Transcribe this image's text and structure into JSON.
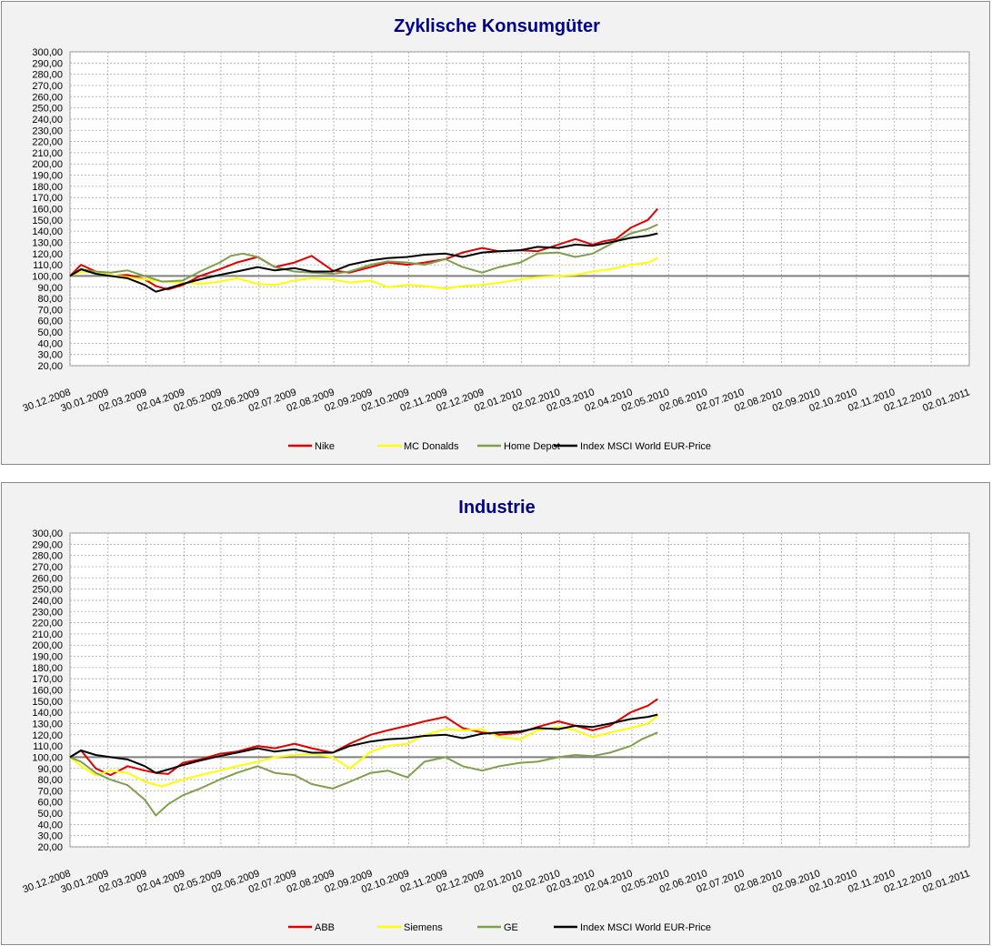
{
  "chart_data": [
    {
      "type": "line",
      "title": "Zyklische Konsumgüter",
      "ylim": [
        20,
        300
      ],
      "ytick_step": 10,
      "xlim": [
        "2008-12-30",
        "2011-01-02"
      ],
      "x_tick_labels": [
        "30.12.2008",
        "30.01.2009",
        "02.03.2009",
        "02.04.2009",
        "02.05.2009",
        "02.06.2009",
        "02.07.2009",
        "02.08.2009",
        "02.09.2009",
        "02.10.2009",
        "02.11.2009",
        "02.12.2009",
        "02.01.2010",
        "02.02.2010",
        "02.03.2010",
        "02.04.2010",
        "02.05.2010",
        "02.06.2010",
        "02.07.2010",
        "02.08.2010",
        "02.09.2010",
        "02.10.2010",
        "02.11.2010",
        "02.12.2010",
        "02.01.2011"
      ],
      "baseline": 100,
      "grid": true,
      "legend_position": "bottom",
      "series": [
        {
          "name": "Nike",
          "color": "#e00000",
          "x": [
            "2008-12-30",
            "2009-01-08",
            "2009-01-20",
            "2009-02-01",
            "2009-02-15",
            "2009-03-01",
            "2009-03-10",
            "2009-03-20",
            "2009-04-01",
            "2009-04-15",
            "2009-05-01",
            "2009-05-15",
            "2009-06-01",
            "2009-06-15",
            "2009-07-01",
            "2009-07-15",
            "2009-08-01",
            "2009-08-15",
            "2009-09-01",
            "2009-09-15",
            "2009-10-01",
            "2009-10-15",
            "2009-11-01",
            "2009-11-15",
            "2009-12-01",
            "2009-12-15",
            "2010-01-01",
            "2010-01-15",
            "2010-02-01",
            "2010-02-15",
            "2010-03-01",
            "2010-03-10",
            "2010-03-20",
            "2010-04-01",
            "2010-04-15",
            "2010-04-23"
          ],
          "y": [
            100,
            110,
            104,
            100,
            101,
            97,
            91,
            88,
            92,
            100,
            106,
            112,
            117,
            108,
            112,
            118,
            105,
            103,
            108,
            112,
            110,
            112,
            115,
            121,
            125,
            122,
            123,
            122,
            128,
            133,
            128,
            131,
            133,
            143,
            150,
            160
          ]
        },
        {
          "name": "MC Donalds",
          "color": "#ffff00",
          "x": [
            "2008-12-30",
            "2009-01-08",
            "2009-01-20",
            "2009-02-01",
            "2009-02-15",
            "2009-03-01",
            "2009-03-15",
            "2009-04-01",
            "2009-04-15",
            "2009-05-01",
            "2009-05-15",
            "2009-06-01",
            "2009-06-15",
            "2009-07-01",
            "2009-07-15",
            "2009-08-01",
            "2009-08-15",
            "2009-09-01",
            "2009-09-15",
            "2009-10-01",
            "2009-10-15",
            "2009-11-01",
            "2009-11-15",
            "2009-12-01",
            "2009-12-15",
            "2010-01-01",
            "2010-01-15",
            "2010-02-01",
            "2010-02-15",
            "2010-03-01",
            "2010-03-15",
            "2010-04-01",
            "2010-04-15",
            "2010-04-23"
          ],
          "y": [
            100,
            104,
            103,
            101,
            99,
            97,
            95,
            94,
            93,
            95,
            98,
            93,
            92,
            96,
            98,
            97,
            94,
            96,
            90,
            92,
            91,
            89,
            91,
            92,
            94,
            97,
            99,
            100,
            101,
            104,
            106,
            110,
            112,
            116
          ]
        },
        {
          "name": "Home Depot",
          "color": "#7f9f4f",
          "x": [
            "2008-12-30",
            "2009-01-08",
            "2009-01-20",
            "2009-02-01",
            "2009-02-15",
            "2009-03-01",
            "2009-03-15",
            "2009-04-01",
            "2009-04-15",
            "2009-05-01",
            "2009-05-10",
            "2009-05-20",
            "2009-06-01",
            "2009-06-15",
            "2009-07-01",
            "2009-07-15",
            "2009-08-01",
            "2009-08-15",
            "2009-09-01",
            "2009-09-15",
            "2009-10-01",
            "2009-10-15",
            "2009-11-01",
            "2009-11-15",
            "2009-12-01",
            "2009-12-15",
            "2010-01-01",
            "2010-01-15",
            "2010-02-01",
            "2010-02-15",
            "2010-03-01",
            "2010-03-15",
            "2010-04-01",
            "2010-04-15",
            "2010-04-23"
          ],
          "y": [
            100,
            106,
            104,
            103,
            105,
            100,
            95,
            96,
            104,
            112,
            118,
            120,
            117,
            108,
            104,
            103,
            102,
            104,
            110,
            113,
            112,
            110,
            115,
            108,
            103,
            108,
            112,
            120,
            121,
            117,
            120,
            128,
            138,
            142,
            146
          ]
        },
        {
          "name": "Index MSCI World EUR-Price",
          "color": "#000000",
          "x": [
            "2008-12-30",
            "2009-01-08",
            "2009-01-20",
            "2009-02-01",
            "2009-02-15",
            "2009-03-01",
            "2009-03-10",
            "2009-03-20",
            "2009-04-01",
            "2009-04-15",
            "2009-05-01",
            "2009-05-15",
            "2009-06-01",
            "2009-06-15",
            "2009-07-01",
            "2009-07-15",
            "2009-08-01",
            "2009-08-15",
            "2009-09-01",
            "2009-09-15",
            "2009-10-01",
            "2009-10-15",
            "2009-11-01",
            "2009-11-15",
            "2009-12-01",
            "2009-12-15",
            "2010-01-01",
            "2010-01-15",
            "2010-02-01",
            "2010-02-15",
            "2010-03-01",
            "2010-03-15",
            "2010-04-01",
            "2010-04-15",
            "2010-04-23"
          ],
          "y": [
            100,
            106,
            102,
            100,
            98,
            92,
            86,
            89,
            93,
            97,
            101,
            104,
            108,
            105,
            107,
            104,
            104,
            110,
            114,
            116,
            117,
            119,
            120,
            117,
            121,
            122,
            123,
            126,
            125,
            128,
            127,
            130,
            134,
            136,
            138
          ]
        }
      ]
    },
    {
      "type": "line",
      "title": "Industrie",
      "ylim": [
        20,
        300
      ],
      "ytick_step": 10,
      "xlim": [
        "2008-12-30",
        "2011-01-02"
      ],
      "x_tick_labels": [
        "30.12.2008",
        "30.01.2009",
        "02.03.2009",
        "02.04.2009",
        "02.05.2009",
        "02.06.2009",
        "02.07.2009",
        "02.08.2009",
        "02.09.2009",
        "02.10.2009",
        "02.11.2009",
        "02.12.2009",
        "02.01.2010",
        "02.02.2010",
        "02.03.2010",
        "02.04.2010",
        "02.05.2010",
        "02.06.2010",
        "02.07.2010",
        "02.08.2010",
        "02.09.2010",
        "02.10.2010",
        "02.11.2010",
        "02.12.2010",
        "02.01.2011"
      ],
      "baseline": 100,
      "grid": true,
      "legend_position": "bottom",
      "series": [
        {
          "name": "ABB",
          "color": "#e00000",
          "x": [
            "2008-12-30",
            "2009-01-08",
            "2009-01-20",
            "2009-02-01",
            "2009-02-15",
            "2009-03-01",
            "2009-03-10",
            "2009-03-20",
            "2009-04-01",
            "2009-04-15",
            "2009-05-01",
            "2009-05-15",
            "2009-06-01",
            "2009-06-15",
            "2009-07-01",
            "2009-07-15",
            "2009-08-01",
            "2009-08-15",
            "2009-09-01",
            "2009-09-15",
            "2009-10-01",
            "2009-10-15",
            "2009-11-01",
            "2009-11-15",
            "2009-12-01",
            "2009-12-15",
            "2010-01-01",
            "2010-01-15",
            "2010-02-01",
            "2010-02-15",
            "2010-03-01",
            "2010-03-15",
            "2010-04-01",
            "2010-04-15",
            "2010-04-23"
          ],
          "y": [
            100,
            106,
            90,
            84,
            92,
            88,
            86,
            85,
            95,
            98,
            103,
            105,
            110,
            108,
            112,
            108,
            104,
            112,
            120,
            124,
            128,
            132,
            136,
            126,
            122,
            120,
            122,
            127,
            132,
            128,
            124,
            128,
            140,
            146,
            152
          ]
        },
        {
          "name": "Siemens",
          "color": "#ffff00",
          "x": [
            "2008-12-30",
            "2009-01-08",
            "2009-01-20",
            "2009-02-01",
            "2009-02-15",
            "2009-03-01",
            "2009-03-15",
            "2009-04-01",
            "2009-04-15",
            "2009-05-01",
            "2009-05-15",
            "2009-06-01",
            "2009-06-15",
            "2009-07-01",
            "2009-07-15",
            "2009-08-01",
            "2009-08-15",
            "2009-09-01",
            "2009-09-15",
            "2009-10-01",
            "2009-10-15",
            "2009-11-01",
            "2009-11-15",
            "2009-12-01",
            "2009-12-15",
            "2010-01-01",
            "2010-01-15",
            "2010-02-01",
            "2010-02-15",
            "2010-03-01",
            "2010-03-15",
            "2010-04-01",
            "2010-04-15",
            "2010-04-23"
          ],
          "y": [
            100,
            92,
            84,
            88,
            86,
            78,
            74,
            80,
            84,
            88,
            92,
            96,
            100,
            102,
            103,
            100,
            90,
            105,
            110,
            112,
            120,
            125,
            124,
            125,
            118,
            116,
            124,
            127,
            124,
            118,
            122,
            126,
            130,
            137
          ]
        },
        {
          "name": "GE",
          "color": "#7f9f4f",
          "x": [
            "2008-12-30",
            "2009-01-08",
            "2009-01-20",
            "2009-02-01",
            "2009-02-15",
            "2009-03-01",
            "2009-03-10",
            "2009-03-20",
            "2009-04-01",
            "2009-04-15",
            "2009-05-01",
            "2009-05-15",
            "2009-06-01",
            "2009-06-15",
            "2009-07-01",
            "2009-07-15",
            "2009-08-01",
            "2009-08-15",
            "2009-09-01",
            "2009-09-15",
            "2009-10-01",
            "2009-10-15",
            "2009-11-01",
            "2009-11-15",
            "2009-12-01",
            "2009-12-15",
            "2010-01-01",
            "2010-01-15",
            "2010-02-01",
            "2010-02-15",
            "2010-03-01",
            "2010-03-15",
            "2010-04-01",
            "2010-04-10",
            "2010-04-23"
          ],
          "y": [
            100,
            96,
            86,
            80,
            75,
            62,
            48,
            58,
            66,
            72,
            80,
            86,
            92,
            86,
            84,
            76,
            72,
            78,
            86,
            88,
            82,
            96,
            100,
            92,
            88,
            92,
            95,
            96,
            100,
            102,
            101,
            104,
            110,
            116,
            122
          ]
        },
        {
          "name": "Index MSCI World EUR-Price",
          "color": "#000000",
          "x": [
            "2008-12-30",
            "2009-01-08",
            "2009-01-20",
            "2009-02-01",
            "2009-02-15",
            "2009-03-01",
            "2009-03-10",
            "2009-03-20",
            "2009-04-01",
            "2009-04-15",
            "2009-05-01",
            "2009-05-15",
            "2009-06-01",
            "2009-06-15",
            "2009-07-01",
            "2009-07-15",
            "2009-08-01",
            "2009-08-15",
            "2009-09-01",
            "2009-09-15",
            "2009-10-01",
            "2009-10-15",
            "2009-11-01",
            "2009-11-15",
            "2009-12-01",
            "2009-12-15",
            "2010-01-01",
            "2010-01-15",
            "2010-02-01",
            "2010-02-15",
            "2010-03-01",
            "2010-03-15",
            "2010-04-01",
            "2010-04-15",
            "2010-04-23"
          ],
          "y": [
            100,
            106,
            102,
            100,
            98,
            92,
            86,
            89,
            93,
            97,
            101,
            104,
            108,
            105,
            107,
            104,
            104,
            110,
            114,
            116,
            117,
            119,
            120,
            117,
            121,
            122,
            123,
            126,
            125,
            128,
            127,
            130,
            134,
            136,
            138
          ]
        }
      ]
    }
  ]
}
